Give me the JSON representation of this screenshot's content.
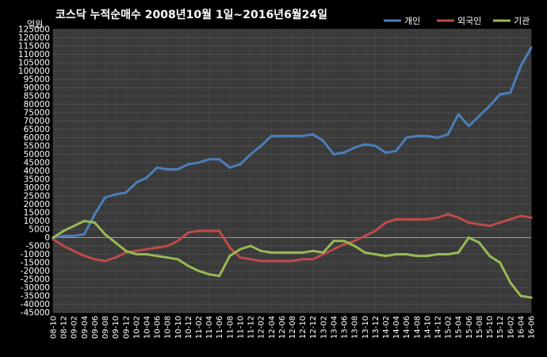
{
  "chart_data": {
    "type": "line",
    "title": "코스닥  누적순매수 2008년10월 1일~2016년6월24일",
    "ylabel": "억원",
    "xlabel": "",
    "ylim": [
      -45000,
      125000
    ],
    "yticks": [
      -45000,
      -40000,
      -35000,
      -30000,
      -25000,
      -20000,
      -15000,
      -10000,
      -5000,
      0,
      5000,
      10000,
      15000,
      20000,
      25000,
      30000,
      35000,
      40000,
      45000,
      50000,
      55000,
      60000,
      65000,
      70000,
      75000,
      80000,
      85000,
      90000,
      95000,
      100000,
      105000,
      110000,
      115000,
      120000,
      125000
    ],
    "grid": true,
    "legend_position": "top-right",
    "x": [
      "08-10",
      "08-12",
      "09-02",
      "09-04",
      "09-06",
      "09-08",
      "09-10",
      "09-12",
      "10-02",
      "10-04",
      "10-06",
      "10-08",
      "10-10",
      "10-12",
      "11-02",
      "11-04",
      "11-06",
      "11-08",
      "11-10",
      "11-12",
      "12-02",
      "12-04",
      "12-06",
      "12-08",
      "12-10",
      "12-12",
      "13-02",
      "13-04",
      "13-06",
      "13-08",
      "13-10",
      "13-12",
      "14-02",
      "14-04",
      "14-06",
      "14-08",
      "14-10",
      "14-12",
      "15-02",
      "15-04",
      "15-06",
      "15-08",
      "15-10",
      "15-12",
      "16-02",
      "16-04",
      "16-06"
    ],
    "series": [
      {
        "name": "개인",
        "color": "#4a7ebb",
        "values": [
          0,
          1000,
          1000,
          2000,
          14000,
          24000,
          26000,
          27000,
          33000,
          36000,
          42000,
          41000,
          41000,
          44000,
          45000,
          47000,
          47000,
          42000,
          44000,
          50000,
          55000,
          61000,
          61000,
          61000,
          61000,
          62000,
          58000,
          50000,
          51000,
          54000,
          56000,
          55000,
          51000,
          52000,
          60000,
          61000,
          61000,
          60000,
          62000,
          74000,
          67000,
          73000,
          79000,
          86000,
          87000,
          103000,
          114000
        ]
      },
      {
        "name": "외국인",
        "color": "#be4b48",
        "values": [
          -1000,
          -5000,
          -8000,
          -11000,
          -13000,
          -14000,
          -12000,
          -9000,
          -8000,
          -7000,
          -6000,
          -5000,
          -2000,
          3000,
          4000,
          4000,
          4000,
          -6000,
          -12000,
          -13000,
          -14000,
          -14000,
          -14000,
          -14000,
          -13000,
          -13000,
          -10000,
          -7000,
          -4000,
          -2000,
          1000,
          4000,
          9000,
          11000,
          11000,
          11000,
          11000,
          12000,
          14000,
          12000,
          9000,
          8000,
          7000,
          9000,
          11000,
          13000,
          12000
        ]
      },
      {
        "name": "기관",
        "color": "#98b954",
        "values": [
          0,
          4000,
          7000,
          10000,
          9000,
          2000,
          -3000,
          -8000,
          -10000,
          -10000,
          -11000,
          -12000,
          -13000,
          -17000,
          -20000,
          -22000,
          -23000,
          -11000,
          -7000,
          -5000,
          -8000,
          -9000,
          -9000,
          -9000,
          -9000,
          -8000,
          -9000,
          -2000,
          -2000,
          -5000,
          -9000,
          -10000,
          -11000,
          -10000,
          -10000,
          -11000,
          -11000,
          -10000,
          -10000,
          -9000,
          0,
          -3000,
          -11000,
          -15000,
          -27000,
          -35000,
          -36000
        ]
      }
    ]
  }
}
